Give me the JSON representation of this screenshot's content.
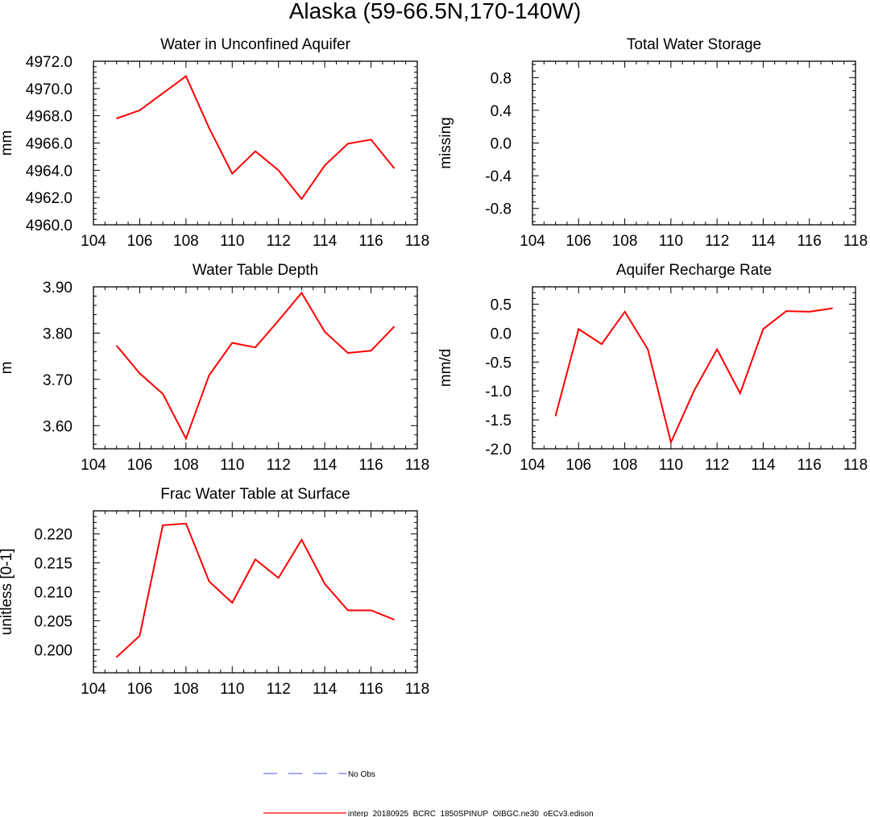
{
  "figure": {
    "title": "Alaska (59-66.5N,170-140W)"
  },
  "legend": {
    "items": [
      {
        "label": "No Obs",
        "color": "#7070e6",
        "style": "dashed"
      },
      {
        "label": "interp_20180925_BCRC_1850SPINUP_OIBGC.ne30_oECv3.edison",
        "color": "#ff0000",
        "style": "solid"
      }
    ]
  },
  "chart_data": [
    {
      "id": "unconfined",
      "type": "line",
      "title": "Water in Unconfined Aquifer",
      "xlabel": "",
      "ylabel": "mm",
      "xlim": [
        104,
        118
      ],
      "ylim": [
        4960,
        4972
      ],
      "xticks": [
        104,
        106,
        108,
        110,
        112,
        114,
        116,
        118
      ],
      "xticklabels": [
        "104",
        "106",
        "108",
        "110",
        "112",
        "114",
        "116",
        "118"
      ],
      "yticks": [
        4960,
        4962,
        4964,
        4966,
        4968,
        4970,
        4972
      ],
      "yticklabels": [
        "4960.0",
        "4962.0",
        "4964.0",
        "4966.0",
        "4968.0",
        "4970.0",
        "4972.0"
      ],
      "x": [
        105,
        106,
        107,
        108,
        109,
        110,
        111,
        112,
        113,
        114,
        115,
        116,
        117
      ],
      "series": [
        {
          "color": "#ff0000",
          "values": [
            4967.8,
            4968.4,
            4969.65,
            4970.9,
            4967.1,
            4963.75,
            4965.4,
            4964.0,
            4961.9,
            4964.35,
            4965.95,
            4966.25,
            4964.15
          ]
        }
      ]
    },
    {
      "id": "tws",
      "type": "line",
      "title": "Total Water Storage",
      "xlabel": "",
      "ylabel": "missing",
      "xlim": [
        104,
        118
      ],
      "ylim": [
        -1,
        1
      ],
      "xticks": [
        104,
        106,
        108,
        110,
        112,
        114,
        116,
        118
      ],
      "xticklabels": [
        "104",
        "106",
        "108",
        "110",
        "112",
        "114",
        "116",
        "118"
      ],
      "yticks": [
        -0.8,
        -0.4,
        0.0,
        0.4,
        0.8
      ],
      "yticklabels": [
        "-0.8",
        "-0.4",
        "0.0",
        "0.4",
        "0.8"
      ],
      "x": [],
      "series": []
    },
    {
      "id": "wtd",
      "type": "line",
      "title": "Water Table Depth",
      "xlabel": "",
      "ylabel": "m",
      "xlim": [
        104,
        118
      ],
      "ylim": [
        3.55,
        3.9
      ],
      "xticks": [
        104,
        106,
        108,
        110,
        112,
        114,
        116,
        118
      ],
      "xticklabels": [
        "104",
        "106",
        "108",
        "110",
        "112",
        "114",
        "116",
        "118"
      ],
      "yticks": [
        3.6,
        3.7,
        3.8,
        3.9
      ],
      "yticklabels": [
        "3.60",
        "3.70",
        "3.80",
        "3.90"
      ],
      "x": [
        105,
        106,
        107,
        108,
        109,
        110,
        111,
        112,
        113,
        114,
        115,
        116,
        117
      ],
      "series": [
        {
          "color": "#ff0000",
          "values": [
            3.773,
            3.713,
            3.669,
            3.572,
            3.709,
            3.779,
            3.769,
            3.827,
            3.887,
            3.803,
            3.757,
            3.762,
            3.814
          ]
        }
      ]
    },
    {
      "id": "recharge",
      "type": "line",
      "title": "Aquifer Recharge Rate",
      "xlabel": "",
      "ylabel": "mm/d",
      "xlim": [
        104,
        118
      ],
      "ylim": [
        -2.0,
        0.8
      ],
      "xticks": [
        104,
        106,
        108,
        110,
        112,
        114,
        116,
        118
      ],
      "xticklabels": [
        "104",
        "106",
        "108",
        "110",
        "112",
        "114",
        "116",
        "118"
      ],
      "yticks": [
        -2.0,
        -1.5,
        -1.0,
        -0.5,
        0.0,
        0.5
      ],
      "yticklabels": [
        "-2.0",
        "-1.5",
        "-1.0",
        "-0.5",
        "0.0",
        "0.5"
      ],
      "x": [
        105,
        106,
        107,
        108,
        109,
        110,
        111,
        112,
        113,
        114,
        115,
        116,
        117
      ],
      "series": [
        {
          "color": "#ff0000",
          "values": [
            -1.43,
            0.07,
            -0.19,
            0.37,
            -0.28,
            -1.89,
            -1.0,
            -0.28,
            -1.04,
            0.07,
            0.38,
            0.37,
            0.43
          ]
        }
      ]
    },
    {
      "id": "frac",
      "type": "line",
      "title": "Frac Water Table at Surface",
      "xlabel": "",
      "ylabel": "unitless [0-1]",
      "xlim": [
        104,
        118
      ],
      "ylim": [
        0.196,
        0.224
      ],
      "xticks": [
        104,
        106,
        108,
        110,
        112,
        114,
        116,
        118
      ],
      "xticklabels": [
        "104",
        "106",
        "108",
        "110",
        "112",
        "114",
        "116",
        "118"
      ],
      "yticks": [
        0.2,
        0.205,
        0.21,
        0.215,
        0.22
      ],
      "yticklabels": [
        "0.200",
        "0.205",
        "0.210",
        "0.215",
        "0.220"
      ],
      "x": [
        105,
        106,
        107,
        108,
        109,
        110,
        111,
        112,
        113,
        114,
        115,
        116,
        117
      ],
      "series": [
        {
          "color": "#ff0000",
          "values": [
            0.1987,
            0.2024,
            0.2215,
            0.2218,
            0.2118,
            0.2081,
            0.2156,
            0.2124,
            0.219,
            0.2114,
            0.2068,
            0.2068,
            0.2052
          ]
        }
      ]
    }
  ]
}
